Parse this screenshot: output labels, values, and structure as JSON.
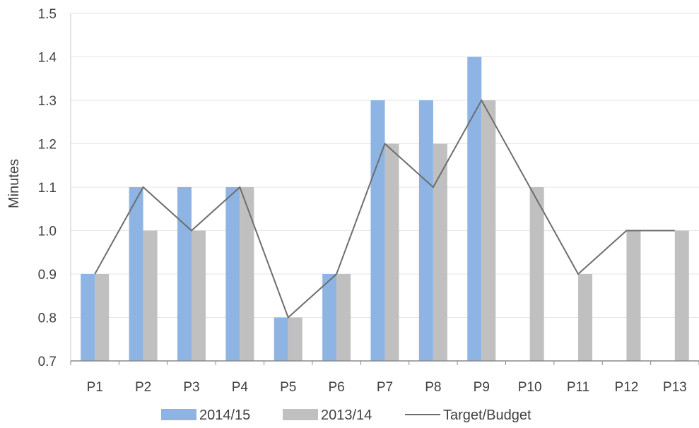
{
  "chart_data": {
    "type": "bar",
    "ylabel": "Minutes",
    "xlabel": "",
    "ylim": [
      0.7,
      1.5
    ],
    "yticks": [
      "0.7",
      "0.8",
      "0.9",
      "1.0",
      "1.1",
      "1.2",
      "1.3",
      "1.4",
      "1.5"
    ],
    "categories": [
      "P1",
      "P2",
      "P3",
      "P4",
      "P5",
      "P6",
      "P7",
      "P8",
      "P9",
      "P10",
      "P11",
      "P12",
      "P13"
    ],
    "series": [
      {
        "name": "2014/15",
        "kind": "bar",
        "color": "#8eb4e3",
        "values": [
          0.9,
          1.1,
          1.1,
          1.1,
          0.8,
          0.9,
          1.3,
          1.3,
          1.4,
          null,
          null,
          null,
          null
        ]
      },
      {
        "name": "2013/14",
        "kind": "bar",
        "color": "#c0c0c0",
        "values": [
          0.9,
          1.0,
          1.0,
          1.1,
          0.8,
          0.9,
          1.2,
          1.2,
          1.3,
          1.1,
          0.9,
          1.0,
          1.0
        ]
      },
      {
        "name": "Target/Budget",
        "kind": "line",
        "color": "#6e6e6e",
        "values": [
          0.9,
          1.1,
          1.0,
          1.1,
          0.8,
          0.9,
          1.2,
          1.1,
          1.3,
          1.1,
          0.9,
          1.0,
          1.0
        ]
      }
    ],
    "grid": true,
    "legend": "bottom"
  }
}
